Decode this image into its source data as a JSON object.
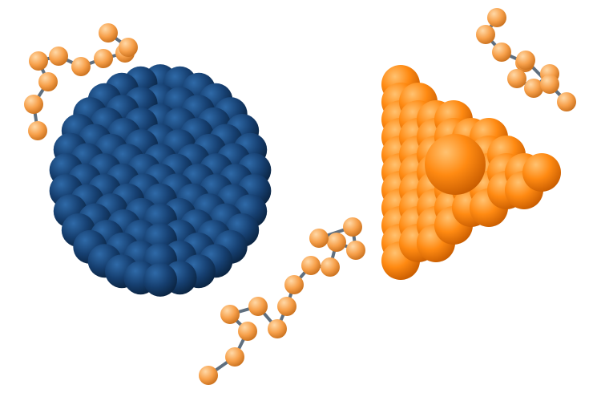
{
  "scene": {
    "background": "#ffffff",
    "objects": [
      {
        "kind": "cluster",
        "shape": "icosahedron",
        "color": "#163f70"
      },
      {
        "kind": "cluster",
        "shape": "tetrahedron",
        "color": "#ff8a12"
      },
      {
        "kind": "chain",
        "color": "#f7a04a",
        "bond_color": "#5f6f7f"
      },
      {
        "kind": "chain",
        "color": "#f7a04a",
        "bond_color": "#5f6f7f"
      },
      {
        "kind": "chain",
        "color": "#f7a04a",
        "bond_color": "#5f6f7f"
      }
    ]
  }
}
